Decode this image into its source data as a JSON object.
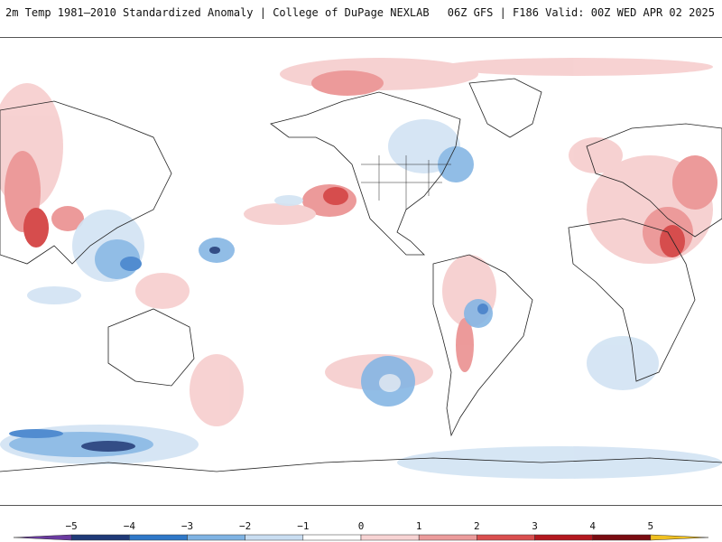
{
  "header": {
    "title_left": "2m Temp 1981–2010 Standardized Anomaly | College of DuPage NEXLAB",
    "title_right": "06Z GFS | F186 Valid: 00Z WED APR 02 2025"
  },
  "colorbar": {
    "ticks": [
      "−5",
      "−4",
      "−3",
      "−2",
      "−1",
      "0",
      "1",
      "2",
      "3",
      "4",
      "5"
    ],
    "colors": [
      "#6a3aa0",
      "#1f3a78",
      "#2f78c8",
      "#7fb3e3",
      "#c9ddf1",
      "#ffffff",
      "#f7d3d3",
      "#eb9b9b",
      "#d94f4f",
      "#b3181f",
      "#7a0c12",
      "#f0c020"
    ]
  },
  "map": {
    "palette": {
      "land_outline": "#222222",
      "warm_light": "#f6cdcd",
      "warm_mid": "#ea9090",
      "warm_strong": "#d23a3a",
      "cool_light": "#d2e3f3",
      "cool_mid": "#86b6e4",
      "cool_strong": "#3f80cc",
      "cool_deep": "#1d3a7a"
    }
  }
}
